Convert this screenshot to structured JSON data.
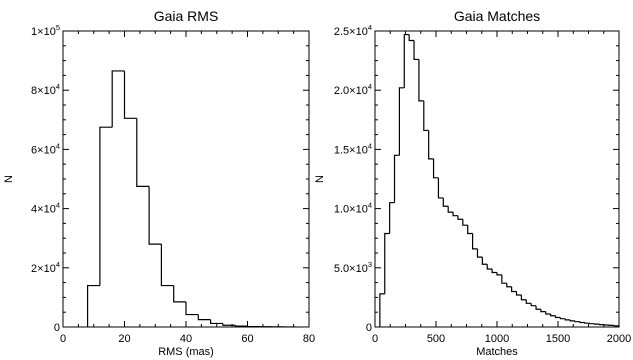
{
  "chart_data": [
    {
      "type": "histogram",
      "title": "Gaia RMS",
      "xlabel": "RMS (mas)",
      "ylabel": "N",
      "xlim": [
        0,
        80
      ],
      "ylim": [
        0,
        100000
      ],
      "x_ticks": [
        {
          "value": 0,
          "label": "0"
        },
        {
          "value": 20,
          "label": "20"
        },
        {
          "value": 40,
          "label": "40"
        },
        {
          "value": 60,
          "label": "60"
        },
        {
          "value": 80,
          "label": "80"
        }
      ],
      "y_ticks": [
        {
          "value": 0,
          "mant": "0",
          "exp": ""
        },
        {
          "value": 20000,
          "mant": "2×10",
          "exp": "4"
        },
        {
          "value": 40000,
          "mant": "4×10",
          "exp": "4"
        },
        {
          "value": 60000,
          "mant": "6×10",
          "exp": "4"
        },
        {
          "value": 80000,
          "mant": "8×10",
          "exp": "4"
        },
        {
          "value": 100000,
          "mant": "1×10",
          "exp": "5"
        }
      ],
      "bin_width": 4,
      "bin_starts": [
        8,
        12,
        16,
        20,
        24,
        28,
        32,
        36,
        40,
        44,
        48,
        52,
        56,
        60,
        64,
        68,
        72
      ],
      "counts": [
        14000,
        67500,
        86500,
        70500,
        47500,
        28000,
        14000,
        8500,
        4200,
        2500,
        1200,
        600,
        300,
        150,
        80,
        40,
        20
      ]
    },
    {
      "type": "histogram",
      "title": "Gaia Matches",
      "xlabel": "Matches",
      "ylabel": "N",
      "xlim": [
        0,
        2000
      ],
      "ylim": [
        0,
        25000
      ],
      "x_ticks": [
        {
          "value": 0,
          "label": "0"
        },
        {
          "value": 500,
          "label": "500"
        },
        {
          "value": 1000,
          "label": "1000"
        },
        {
          "value": 1500,
          "label": "1500"
        },
        {
          "value": 2000,
          "label": "2000"
        }
      ],
      "y_ticks": [
        {
          "value": 0,
          "mant": "0",
          "exp": ""
        },
        {
          "value": 5000,
          "mant": "5.0×10",
          "exp": "3"
        },
        {
          "value": 10000,
          "mant": "1.0×10",
          "exp": "4"
        },
        {
          "value": 15000,
          "mant": "1.5×10",
          "exp": "4"
        },
        {
          "value": 20000,
          "mant": "2.0×10",
          "exp": "4"
        },
        {
          "value": 25000,
          "mant": "2.5×10",
          "exp": "4"
        }
      ],
      "bin_width": 40,
      "bin_starts": [
        40,
        80,
        120,
        160,
        200,
        240,
        280,
        320,
        360,
        400,
        440,
        480,
        520,
        560,
        600,
        640,
        680,
        720,
        760,
        800,
        840,
        880,
        920,
        960,
        1000,
        1040,
        1080,
        1120,
        1160,
        1200,
        1240,
        1280,
        1320,
        1360,
        1400,
        1440,
        1480,
        1520,
        1560,
        1600,
        1640,
        1680,
        1720,
        1760,
        1800,
        1840,
        1880,
        1920,
        1960
      ],
      "counts": [
        2800,
        7900,
        10500,
        14500,
        20200,
        24700,
        24200,
        22600,
        19100,
        16600,
        14200,
        12600,
        10900,
        10200,
        9700,
        9400,
        9100,
        8600,
        7900,
        6600,
        5900,
        5300,
        4900,
        4600,
        4400,
        3700,
        3400,
        3000,
        2700,
        2300,
        2000,
        1800,
        1500,
        1300,
        1100,
        950,
        800,
        700,
        600,
        520,
        450,
        380,
        320,
        280,
        240,
        200,
        170,
        140,
        100
      ]
    }
  ]
}
